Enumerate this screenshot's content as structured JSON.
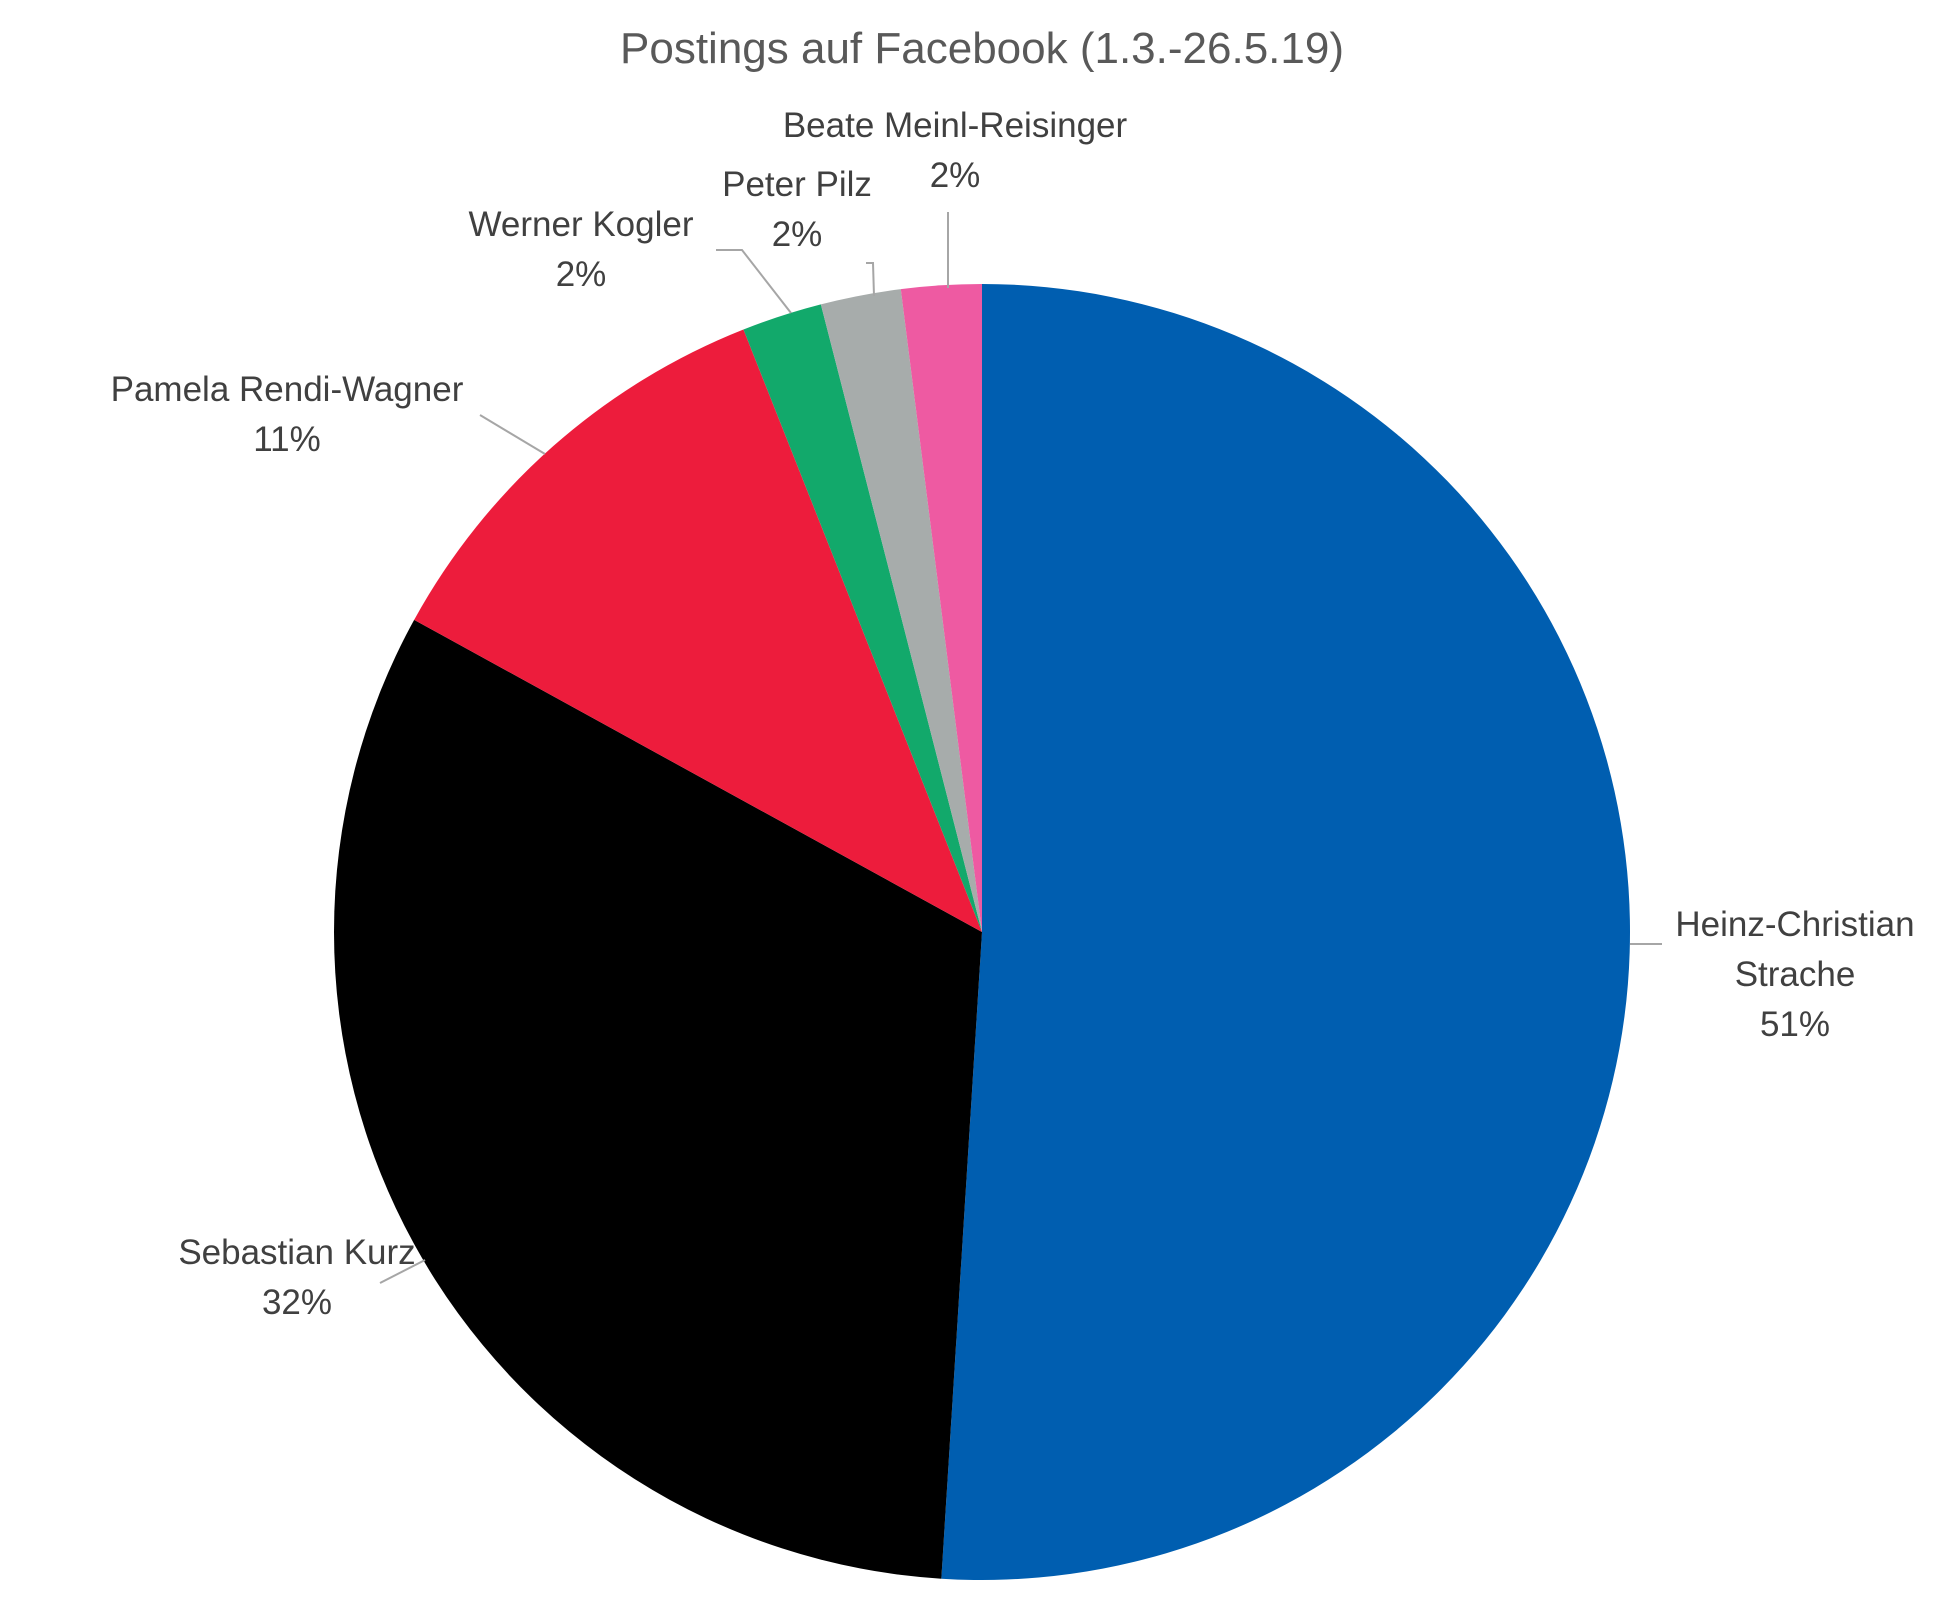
{
  "chart_data": {
    "type": "pie",
    "title": "Postings auf Facebook (1.3.-26.5.19)",
    "slices": [
      {
        "name": "Heinz-Christian Strache",
        "label_lines": [
          "Heinz-Christian",
          "Strache"
        ],
        "value": 51,
        "value_label": "51%",
        "color": "#005EB0"
      },
      {
        "name": "Sebastian Kurz",
        "label_lines": [
          "Sebastian Kurz"
        ],
        "value": 32,
        "value_label": "32%",
        "color": "#000000"
      },
      {
        "name": "Pamela Rendi-Wagner",
        "label_lines": [
          "Pamela Rendi-Wagner"
        ],
        "value": 11,
        "value_label": "11%",
        "color": "#ED1C3C"
      },
      {
        "name": "Werner Kogler",
        "label_lines": [
          "Werner Kogler"
        ],
        "value": 2,
        "value_label": "2%",
        "color": "#12A96B"
      },
      {
        "name": "Peter Pilz",
        "label_lines": [
          "Peter Pilz"
        ],
        "value": 2,
        "value_label": "2%",
        "color": "#A7ACAB"
      },
      {
        "name": "Beate Meinl-Reisinger",
        "label_lines": [
          "Beate Meinl-Reisinger"
        ],
        "value": 2,
        "value_label": "2%",
        "color": "#EE5AA2"
      }
    ],
    "start_angle": "12 o'clock",
    "direction": "clockwise",
    "legend": "none",
    "data_labels": "outside with leader lines"
  }
}
